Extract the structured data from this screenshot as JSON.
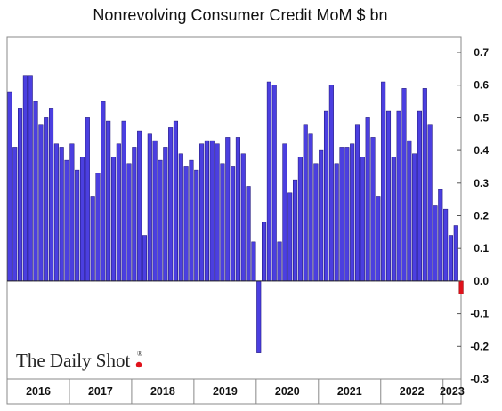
{
  "chart_data": {
    "type": "bar",
    "title": "Nonrevolving Consumer Credit MoM $ bn",
    "xlabel": "",
    "ylabel": "",
    "ylim": [
      -0.3,
      0.7
    ],
    "yticks": [
      -0.3,
      -0.2,
      -0.1,
      0.0,
      0.1,
      0.2,
      0.3,
      0.4,
      0.5,
      0.6,
      0.7
    ],
    "ytick_labels": [
      "-0.3",
      "-0.2",
      "-0.1",
      "0.0",
      "0.1",
      "0.2",
      "0.3",
      "0.4",
      "0.5",
      "0.6",
      "0.7"
    ],
    "y_axis_side": "right",
    "grid": false,
    "legend": "none",
    "bar_color": "#4b3fe0",
    "highlight_color": "#e0121b",
    "years": [
      "2016",
      "2017",
      "2018",
      "2019",
      "2020",
      "2021",
      "2022",
      "2023"
    ],
    "values": [
      0.58,
      0.41,
      0.53,
      0.63,
      0.63,
      0.55,
      0.48,
      0.5,
      0.53,
      0.42,
      0.41,
      0.37,
      0.42,
      0.34,
      0.38,
      0.5,
      0.26,
      0.33,
      0.55,
      0.49,
      0.38,
      0.42,
      0.49,
      0.36,
      0.41,
      0.46,
      0.14,
      0.45,
      0.43,
      0.37,
      0.41,
      0.47,
      0.49,
      0.39,
      0.35,
      0.37,
      0.34,
      0.42,
      0.43,
      0.43,
      0.42,
      0.36,
      0.44,
      0.35,
      0.44,
      0.39,
      0.29,
      0.12,
      -0.22,
      0.18,
      0.61,
      0.6,
      0.12,
      0.42,
      0.27,
      0.31,
      0.38,
      0.48,
      0.45,
      0.36,
      0.4,
      0.52,
      0.6,
      0.36,
      0.41,
      0.41,
      0.42,
      0.48,
      0.38,
      0.5,
      0.44,
      0.26,
      0.61,
      0.52,
      0.38,
      0.52,
      0.59,
      0.43,
      0.39,
      0.52,
      0.59,
      0.48,
      0.23,
      0.28,
      0.22,
      0.14,
      0.17,
      -0.04
    ]
  },
  "branding": {
    "logo_text": "The Daily Shot",
    "registered_mark": "®"
  }
}
